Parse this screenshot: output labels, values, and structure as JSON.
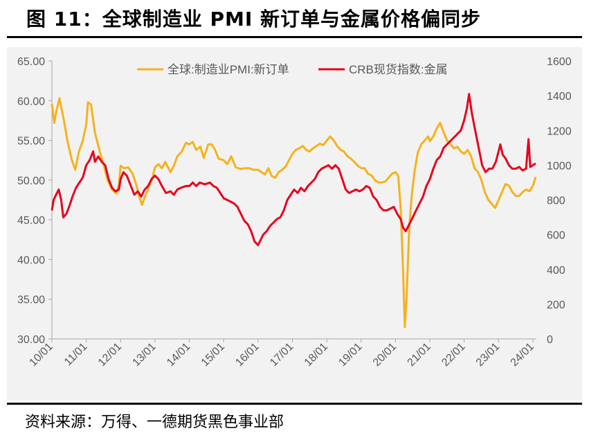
{
  "figure": {
    "title": "图 11：全球制造业 PMI 新订单与金属价格偏同步",
    "source": "资料来源：万得、一德期货黑色事业部"
  },
  "colors": {
    "pmi": "#f5b21b",
    "crb": "#e8001c",
    "background": "#f2f2f2",
    "axis": "#a6a6a6",
    "text": "#595959"
  },
  "chart_data": {
    "type": "line",
    "legend": [
      "全球:制造业PMI:新订单",
      "CRB现货指数:金属"
    ],
    "legend_position": "top-center",
    "grid": false,
    "x": [
      "10/01",
      "11/01",
      "12/01",
      "13/01",
      "14/01",
      "15/01",
      "16/01",
      "17/01",
      "18/01",
      "19/01",
      "20/01",
      "21/01",
      "22/01",
      "23/01",
      "24/01"
    ],
    "x_range": [
      2010.0,
      2024.1
    ],
    "y_left": {
      "ticks": [
        "30.00",
        "35.00",
        "40.00",
        "45.00",
        "50.00",
        "55.00",
        "60.00",
        "65.00"
      ],
      "range": [
        30,
        65
      ]
    },
    "y_right": {
      "ticks": [
        "0",
        "200",
        "400",
        "600",
        "800",
        "1000",
        "1200",
        "1400",
        "1600"
      ],
      "range": [
        0,
        1600
      ]
    },
    "series": [
      {
        "name": "全球:制造业PMI:新订单",
        "axis": "left",
        "points": [
          [
            2010.0,
            59.6
          ],
          [
            2010.07,
            57.2
          ],
          [
            2010.12,
            58.5
          ],
          [
            2010.22,
            60.3
          ],
          [
            2010.35,
            57.5
          ],
          [
            2010.45,
            55.0
          ],
          [
            2010.58,
            52.5
          ],
          [
            2010.68,
            51.3
          ],
          [
            2010.78,
            53.5
          ],
          [
            2010.9,
            55.0
          ],
          [
            2011.0,
            57.0
          ],
          [
            2011.05,
            59.8
          ],
          [
            2011.14,
            59.5
          ],
          [
            2011.25,
            56.0
          ],
          [
            2011.38,
            53.8
          ],
          [
            2011.5,
            52.0
          ],
          [
            2011.62,
            50.0
          ],
          [
            2011.75,
            48.8
          ],
          [
            2011.88,
            48.3
          ],
          [
            2011.95,
            49.5
          ],
          [
            2012.0,
            51.8
          ],
          [
            2012.1,
            51.5
          ],
          [
            2012.22,
            51.6
          ],
          [
            2012.35,
            50.8
          ],
          [
            2012.45,
            49.5
          ],
          [
            2012.55,
            47.8
          ],
          [
            2012.62,
            46.9
          ],
          [
            2012.7,
            47.8
          ],
          [
            2012.8,
            48.9
          ],
          [
            2012.92,
            50.2
          ],
          [
            2013.0,
            51.6
          ],
          [
            2013.1,
            52.0
          ],
          [
            2013.2,
            51.5
          ],
          [
            2013.3,
            52.3
          ],
          [
            2013.45,
            51.0
          ],
          [
            2013.55,
            51.8
          ],
          [
            2013.65,
            53.0
          ],
          [
            2013.78,
            53.6
          ],
          [
            2013.9,
            54.7
          ],
          [
            2014.0,
            54.5
          ],
          [
            2014.1,
            54.8
          ],
          [
            2014.2,
            53.8
          ],
          [
            2014.32,
            54.2
          ],
          [
            2014.42,
            52.8
          ],
          [
            2014.55,
            54.5
          ],
          [
            2014.65,
            54.5
          ],
          [
            2014.75,
            53.8
          ],
          [
            2014.85,
            52.7
          ],
          [
            2015.0,
            52.5
          ],
          [
            2015.1,
            52.0
          ],
          [
            2015.22,
            53.0
          ],
          [
            2015.35,
            51.6
          ],
          [
            2015.5,
            51.4
          ],
          [
            2015.62,
            51.5
          ],
          [
            2015.75,
            51.5
          ],
          [
            2015.85,
            51.3
          ],
          [
            2016.0,
            51.3
          ],
          [
            2016.1,
            51.0
          ],
          [
            2016.2,
            50.7
          ],
          [
            2016.3,
            51.5
          ],
          [
            2016.4,
            50.5
          ],
          [
            2016.5,
            50.3
          ],
          [
            2016.6,
            51.0
          ],
          [
            2016.7,
            51.3
          ],
          [
            2016.8,
            51.7
          ],
          [
            2016.9,
            52.5
          ],
          [
            2017.0,
            53.3
          ],
          [
            2017.1,
            53.8
          ],
          [
            2017.2,
            54.0
          ],
          [
            2017.3,
            54.3
          ],
          [
            2017.4,
            53.8
          ],
          [
            2017.5,
            53.6
          ],
          [
            2017.6,
            54.0
          ],
          [
            2017.7,
            54.3
          ],
          [
            2017.8,
            54.6
          ],
          [
            2017.9,
            54.4
          ],
          [
            2018.0,
            55.0
          ],
          [
            2018.1,
            55.5
          ],
          [
            2018.2,
            55.0
          ],
          [
            2018.3,
            54.3
          ],
          [
            2018.4,
            53.8
          ],
          [
            2018.5,
            53.6
          ],
          [
            2018.6,
            53.0
          ],
          [
            2018.7,
            52.7
          ],
          [
            2018.8,
            52.3
          ],
          [
            2018.9,
            51.8
          ],
          [
            2019.0,
            51.5
          ],
          [
            2019.1,
            51.5
          ],
          [
            2019.2,
            50.8
          ],
          [
            2019.3,
            50.6
          ],
          [
            2019.4,
            50.0
          ],
          [
            2019.5,
            49.7
          ],
          [
            2019.6,
            49.7
          ],
          [
            2019.7,
            49.8
          ],
          [
            2019.8,
            50.3
          ],
          [
            2019.9,
            50.8
          ],
          [
            2020.0,
            51.0
          ],
          [
            2020.08,
            50.5
          ],
          [
            2020.15,
            46.5
          ],
          [
            2020.22,
            38.5
          ],
          [
            2020.27,
            31.5
          ],
          [
            2020.32,
            35.0
          ],
          [
            2020.4,
            44.0
          ],
          [
            2020.47,
            48.0
          ],
          [
            2020.55,
            51.0
          ],
          [
            2020.65,
            53.5
          ],
          [
            2020.75,
            54.5
          ],
          [
            2020.85,
            55.0
          ],
          [
            2020.95,
            55.5
          ],
          [
            2021.0,
            54.9
          ],
          [
            2021.1,
            55.5
          ],
          [
            2021.2,
            56.5
          ],
          [
            2021.3,
            57.2
          ],
          [
            2021.4,
            56.0
          ],
          [
            2021.5,
            55.0
          ],
          [
            2021.6,
            54.5
          ],
          [
            2021.7,
            54.0
          ],
          [
            2021.8,
            54.2
          ],
          [
            2021.9,
            53.6
          ],
          [
            2022.0,
            53.3
          ],
          [
            2022.1,
            53.8
          ],
          [
            2022.2,
            53.0
          ],
          [
            2022.3,
            51.5
          ],
          [
            2022.4,
            51.0
          ],
          [
            2022.5,
            50.0
          ],
          [
            2022.6,
            48.5
          ],
          [
            2022.7,
            47.5
          ],
          [
            2022.8,
            47.0
          ],
          [
            2022.9,
            46.5
          ],
          [
            2023.0,
            47.5
          ],
          [
            2023.1,
            48.5
          ],
          [
            2023.2,
            49.5
          ],
          [
            2023.3,
            49.3
          ],
          [
            2023.4,
            48.5
          ],
          [
            2023.5,
            48.0
          ],
          [
            2023.6,
            48.0
          ],
          [
            2023.7,
            48.5
          ],
          [
            2023.8,
            48.8
          ],
          [
            2023.9,
            48.6
          ],
          [
            2024.0,
            49.3
          ],
          [
            2024.08,
            50.4
          ]
        ]
      },
      {
        "name": "CRB现货指数:金属",
        "axis": "right",
        "points": [
          [
            2010.0,
            740
          ],
          [
            2010.05,
            800
          ],
          [
            2010.12,
            830
          ],
          [
            2010.2,
            860
          ],
          [
            2010.27,
            800
          ],
          [
            2010.33,
            700
          ],
          [
            2010.42,
            720
          ],
          [
            2010.5,
            760
          ],
          [
            2010.6,
            820
          ],
          [
            2010.7,
            870
          ],
          [
            2010.8,
            900
          ],
          [
            2010.9,
            930
          ],
          [
            2011.0,
            1000
          ],
          [
            2011.1,
            1030
          ],
          [
            2011.2,
            1080
          ],
          [
            2011.25,
            1020
          ],
          [
            2011.35,
            1050
          ],
          [
            2011.45,
            1020
          ],
          [
            2011.55,
            1000
          ],
          [
            2011.65,
            920
          ],
          [
            2011.75,
            870
          ],
          [
            2011.85,
            850
          ],
          [
            2011.95,
            860
          ],
          [
            2012.0,
            920
          ],
          [
            2012.08,
            960
          ],
          [
            2012.18,
            940
          ],
          [
            2012.3,
            880
          ],
          [
            2012.4,
            830
          ],
          [
            2012.5,
            850
          ],
          [
            2012.6,
            820
          ],
          [
            2012.7,
            860
          ],
          [
            2012.8,
            880
          ],
          [
            2012.9,
            920
          ],
          [
            2013.0,
            940
          ],
          [
            2013.1,
            920
          ],
          [
            2013.2,
            880
          ],
          [
            2013.32,
            840
          ],
          [
            2013.45,
            850
          ],
          [
            2013.55,
            830
          ],
          [
            2013.65,
            860
          ],
          [
            2013.75,
            870
          ],
          [
            2013.9,
            880
          ],
          [
            2014.0,
            880
          ],
          [
            2014.1,
            900
          ],
          [
            2014.2,
            880
          ],
          [
            2014.3,
            900
          ],
          [
            2014.45,
            890
          ],
          [
            2014.6,
            900
          ],
          [
            2014.7,
            880
          ],
          [
            2014.8,
            870
          ],
          [
            2014.9,
            840
          ],
          [
            2015.0,
            810
          ],
          [
            2015.1,
            800
          ],
          [
            2015.2,
            790
          ],
          [
            2015.3,
            780
          ],
          [
            2015.4,
            760
          ],
          [
            2015.5,
            720
          ],
          [
            2015.6,
            680
          ],
          [
            2015.7,
            660
          ],
          [
            2015.8,
            620
          ],
          [
            2015.9,
            560
          ],
          [
            2016.0,
            540
          ],
          [
            2016.05,
            560
          ],
          [
            2016.15,
            600
          ],
          [
            2016.25,
            620
          ],
          [
            2016.35,
            650
          ],
          [
            2016.45,
            670
          ],
          [
            2016.55,
            690
          ],
          [
            2016.65,
            700
          ],
          [
            2016.75,
            740
          ],
          [
            2016.85,
            800
          ],
          [
            2016.95,
            830
          ],
          [
            2017.05,
            860
          ],
          [
            2017.15,
            840
          ],
          [
            2017.25,
            870
          ],
          [
            2017.35,
            850
          ],
          [
            2017.45,
            880
          ],
          [
            2017.55,
            900
          ],
          [
            2017.65,
            920
          ],
          [
            2017.75,
            960
          ],
          [
            2017.85,
            980
          ],
          [
            2017.95,
            990
          ],
          [
            2018.05,
            1000
          ],
          [
            2018.15,
            980
          ],
          [
            2018.25,
            1000
          ],
          [
            2018.35,
            980
          ],
          [
            2018.45,
            920
          ],
          [
            2018.55,
            860
          ],
          [
            2018.65,
            840
          ],
          [
            2018.75,
            850
          ],
          [
            2018.85,
            860
          ],
          [
            2018.95,
            850
          ],
          [
            2019.05,
            860
          ],
          [
            2019.15,
            880
          ],
          [
            2019.25,
            870
          ],
          [
            2019.35,
            820
          ],
          [
            2019.45,
            800
          ],
          [
            2019.55,
            760
          ],
          [
            2019.65,
            740
          ],
          [
            2019.75,
            740
          ],
          [
            2019.85,
            750
          ],
          [
            2019.95,
            760
          ],
          [
            2020.05,
            720
          ],
          [
            2020.15,
            690
          ],
          [
            2020.22,
            640
          ],
          [
            2020.3,
            620
          ],
          [
            2020.4,
            660
          ],
          [
            2020.5,
            700
          ],
          [
            2020.6,
            740
          ],
          [
            2020.7,
            780
          ],
          [
            2020.8,
            820
          ],
          [
            2020.9,
            880
          ],
          [
            2021.0,
            920
          ],
          [
            2021.1,
            980
          ],
          [
            2021.2,
            1030
          ],
          [
            2021.3,
            1050
          ],
          [
            2021.4,
            1100
          ],
          [
            2021.5,
            1120
          ],
          [
            2021.6,
            1140
          ],
          [
            2021.7,
            1160
          ],
          [
            2021.8,
            1180
          ],
          [
            2021.9,
            1200
          ],
          [
            2022.0,
            1260
          ],
          [
            2022.08,
            1330
          ],
          [
            2022.14,
            1410
          ],
          [
            2022.22,
            1300
          ],
          [
            2022.32,
            1200
          ],
          [
            2022.42,
            1100
          ],
          [
            2022.52,
            1000
          ],
          [
            2022.62,
            960
          ],
          [
            2022.72,
            980
          ],
          [
            2022.82,
            980
          ],
          [
            2022.92,
            1020
          ],
          [
            2023.0,
            1080
          ],
          [
            2023.05,
            1120
          ],
          [
            2023.12,
            1060
          ],
          [
            2023.2,
            1040
          ],
          [
            2023.3,
            1000
          ],
          [
            2023.4,
            980
          ],
          [
            2023.5,
            980
          ],
          [
            2023.6,
            990
          ],
          [
            2023.7,
            970
          ],
          [
            2023.8,
            980
          ],
          [
            2023.87,
            1150
          ],
          [
            2023.92,
            990
          ],
          [
            2024.0,
            1000
          ],
          [
            2024.08,
            1010
          ]
        ]
      }
    ]
  }
}
